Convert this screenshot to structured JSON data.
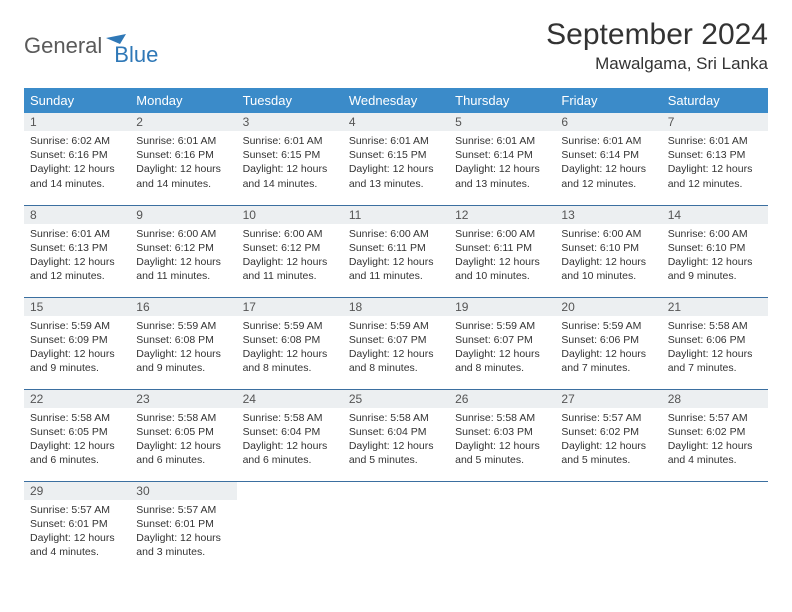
{
  "logo": {
    "word1": "General",
    "word2": "Blue",
    "icon_color": "#2f78b7"
  },
  "title": "September 2024",
  "location": "Mawalgama, Sri Lanka",
  "header_bg": "#3b8bc9",
  "header_fg": "#ffffff",
  "daynum_bg": "#eceff1",
  "border_color": "#3b6fa0",
  "weekdays": [
    "Sunday",
    "Monday",
    "Tuesday",
    "Wednesday",
    "Thursday",
    "Friday",
    "Saturday"
  ],
  "weeks": [
    [
      {
        "n": "1",
        "sr": "6:02 AM",
        "ss": "6:16 PM",
        "dl": "12 hours and 14 minutes."
      },
      {
        "n": "2",
        "sr": "6:01 AM",
        "ss": "6:16 PM",
        "dl": "12 hours and 14 minutes."
      },
      {
        "n": "3",
        "sr": "6:01 AM",
        "ss": "6:15 PM",
        "dl": "12 hours and 14 minutes."
      },
      {
        "n": "4",
        "sr": "6:01 AM",
        "ss": "6:15 PM",
        "dl": "12 hours and 13 minutes."
      },
      {
        "n": "5",
        "sr": "6:01 AM",
        "ss": "6:14 PM",
        "dl": "12 hours and 13 minutes."
      },
      {
        "n": "6",
        "sr": "6:01 AM",
        "ss": "6:14 PM",
        "dl": "12 hours and 12 minutes."
      },
      {
        "n": "7",
        "sr": "6:01 AM",
        "ss": "6:13 PM",
        "dl": "12 hours and 12 minutes."
      }
    ],
    [
      {
        "n": "8",
        "sr": "6:01 AM",
        "ss": "6:13 PM",
        "dl": "12 hours and 12 minutes."
      },
      {
        "n": "9",
        "sr": "6:00 AM",
        "ss": "6:12 PM",
        "dl": "12 hours and 11 minutes."
      },
      {
        "n": "10",
        "sr": "6:00 AM",
        "ss": "6:12 PM",
        "dl": "12 hours and 11 minutes."
      },
      {
        "n": "11",
        "sr": "6:00 AM",
        "ss": "6:11 PM",
        "dl": "12 hours and 11 minutes."
      },
      {
        "n": "12",
        "sr": "6:00 AM",
        "ss": "6:11 PM",
        "dl": "12 hours and 10 minutes."
      },
      {
        "n": "13",
        "sr": "6:00 AM",
        "ss": "6:10 PM",
        "dl": "12 hours and 10 minutes."
      },
      {
        "n": "14",
        "sr": "6:00 AM",
        "ss": "6:10 PM",
        "dl": "12 hours and 9 minutes."
      }
    ],
    [
      {
        "n": "15",
        "sr": "5:59 AM",
        "ss": "6:09 PM",
        "dl": "12 hours and 9 minutes."
      },
      {
        "n": "16",
        "sr": "5:59 AM",
        "ss": "6:08 PM",
        "dl": "12 hours and 9 minutes."
      },
      {
        "n": "17",
        "sr": "5:59 AM",
        "ss": "6:08 PM",
        "dl": "12 hours and 8 minutes."
      },
      {
        "n": "18",
        "sr": "5:59 AM",
        "ss": "6:07 PM",
        "dl": "12 hours and 8 minutes."
      },
      {
        "n": "19",
        "sr": "5:59 AM",
        "ss": "6:07 PM",
        "dl": "12 hours and 8 minutes."
      },
      {
        "n": "20",
        "sr": "5:59 AM",
        "ss": "6:06 PM",
        "dl": "12 hours and 7 minutes."
      },
      {
        "n": "21",
        "sr": "5:58 AM",
        "ss": "6:06 PM",
        "dl": "12 hours and 7 minutes."
      }
    ],
    [
      {
        "n": "22",
        "sr": "5:58 AM",
        "ss": "6:05 PM",
        "dl": "12 hours and 6 minutes."
      },
      {
        "n": "23",
        "sr": "5:58 AM",
        "ss": "6:05 PM",
        "dl": "12 hours and 6 minutes."
      },
      {
        "n": "24",
        "sr": "5:58 AM",
        "ss": "6:04 PM",
        "dl": "12 hours and 6 minutes."
      },
      {
        "n": "25",
        "sr": "5:58 AM",
        "ss": "6:04 PM",
        "dl": "12 hours and 5 minutes."
      },
      {
        "n": "26",
        "sr": "5:58 AM",
        "ss": "6:03 PM",
        "dl": "12 hours and 5 minutes."
      },
      {
        "n": "27",
        "sr": "5:57 AM",
        "ss": "6:02 PM",
        "dl": "12 hours and 5 minutes."
      },
      {
        "n": "28",
        "sr": "5:57 AM",
        "ss": "6:02 PM",
        "dl": "12 hours and 4 minutes."
      }
    ],
    [
      {
        "n": "29",
        "sr": "5:57 AM",
        "ss": "6:01 PM",
        "dl": "12 hours and 4 minutes."
      },
      {
        "n": "30",
        "sr": "5:57 AM",
        "ss": "6:01 PM",
        "dl": "12 hours and 3 minutes."
      },
      null,
      null,
      null,
      null,
      null
    ]
  ],
  "labels": {
    "sunrise": "Sunrise:",
    "sunset": "Sunset:",
    "daylight": "Daylight:"
  }
}
